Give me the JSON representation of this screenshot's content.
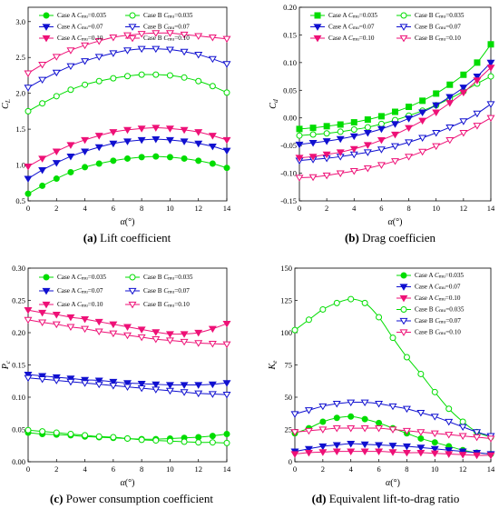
{
  "colors": {
    "green": "#00dd00",
    "blue": "#1010d0",
    "magenta": "#ee1177"
  },
  "figure": {
    "captions": [
      {
        "letter": "(a)",
        "text": "Lift coefficient"
      },
      {
        "letter": "(b)",
        "text": "Drag coefficien"
      },
      {
        "letter": "(c)",
        "text": "Power consumption coefficient"
      },
      {
        "letter": "(d)",
        "text": "Equivalent lift-to-drag ratio"
      }
    ]
  },
  "legend_labels": [
    {
      "caseLabel": "Case A",
      "var": "C",
      "sub": "mu",
      "value": "=0.035"
    },
    {
      "caseLabel": "Case B",
      "var": "C",
      "sub": "mu",
      "value": "=0.035"
    },
    {
      "caseLabel": "Case A",
      "var": "C",
      "sub": "mu",
      "value": "=0.07"
    },
    {
      "caseLabel": "Case B",
      "var": "C",
      "sub": "mu",
      "value": "=0.07"
    },
    {
      "caseLabel": "Case A",
      "var": "C",
      "sub": "mu",
      "value": "=0.10"
    },
    {
      "caseLabel": "Case B",
      "var": "C",
      "sub": "mu",
      "value": "=0.10"
    }
  ],
  "chart_data": [
    {
      "type": "line",
      "xlabel": "α(°)",
      "ylabel": "CL",
      "xlim": [
        0,
        14
      ],
      "ylim": [
        0.5,
        3.2
      ],
      "xticks": [
        0,
        2,
        4,
        6,
        8,
        10,
        12,
        14
      ],
      "yticks": [
        0.5,
        1.0,
        1.5,
        2.0,
        2.5,
        3.0
      ],
      "ytick_labels": [
        "0.5",
        "1.0",
        "1.5",
        "2.0",
        "2.5",
        "3.0"
      ],
      "legend": "top",
      "legend_columns": 2,
      "x": [
        0,
        1,
        2,
        3,
        4,
        5,
        6,
        7,
        8,
        9,
        10,
        11,
        12,
        13,
        14
      ],
      "series": [
        {
          "name": "Case A Cmu=0.035",
          "color": "green",
          "marker": "circle",
          "filled": true,
          "values": [
            0.6,
            0.71,
            0.81,
            0.9,
            0.97,
            1.02,
            1.06,
            1.09,
            1.11,
            1.12,
            1.11,
            1.09,
            1.06,
            1.02,
            0.96
          ]
        },
        {
          "name": "Case B Cmu=0.035",
          "color": "green",
          "marker": "circle",
          "filled": false,
          "values": [
            1.75,
            1.86,
            1.96,
            2.05,
            2.12,
            2.17,
            2.21,
            2.24,
            2.26,
            2.26,
            2.25,
            2.22,
            2.17,
            2.1,
            2.01
          ]
        },
        {
          "name": "Case A Cmu=0.07",
          "color": "blue",
          "marker": "triangle-down",
          "filled": true,
          "values": [
            0.81,
            0.93,
            1.03,
            1.12,
            1.19,
            1.25,
            1.3,
            1.33,
            1.35,
            1.36,
            1.35,
            1.33,
            1.3,
            1.26,
            1.2
          ]
        },
        {
          "name": "Case B Cmu=0.07",
          "color": "blue",
          "marker": "triangle-down",
          "filled": false,
          "values": [
            2.08,
            2.19,
            2.29,
            2.38,
            2.45,
            2.51,
            2.56,
            2.6,
            2.62,
            2.62,
            2.61,
            2.58,
            2.54,
            2.48,
            2.41
          ]
        },
        {
          "name": "Case A Cmu=0.10",
          "color": "magenta",
          "marker": "triangle-down",
          "filled": true,
          "values": [
            0.98,
            1.09,
            1.19,
            1.28,
            1.35,
            1.41,
            1.46,
            1.49,
            1.51,
            1.52,
            1.51,
            1.49,
            1.46,
            1.41,
            1.35
          ]
        },
        {
          "name": "Case B Cmu=0.10",
          "color": "magenta",
          "marker": "triangle-down",
          "filled": false,
          "values": [
            2.28,
            2.4,
            2.51,
            2.6,
            2.67,
            2.73,
            2.78,
            2.81,
            2.83,
            2.84,
            2.84,
            2.82,
            2.8,
            2.78,
            2.76
          ]
        }
      ]
    },
    {
      "type": "line",
      "xlabel": "α(°)",
      "ylabel": "Cd",
      "xlim": [
        0,
        14
      ],
      "ylim": [
        -0.15,
        0.2
      ],
      "xticks": [
        0,
        2,
        4,
        6,
        8,
        10,
        12,
        14
      ],
      "yticks": [
        -0.15,
        -0.1,
        -0.05,
        0.0,
        0.05,
        0.1,
        0.15,
        0.2
      ],
      "ytick_labels": [
        "-0.15",
        "-0.10",
        "-0.05",
        "0.00",
        "0.05",
        "0.10",
        "0.15",
        "0.20"
      ],
      "legend": "top",
      "legend_columns": 2,
      "x": [
        0,
        1,
        2,
        3,
        4,
        5,
        6,
        7,
        8,
        9,
        10,
        11,
        12,
        13,
        14
      ],
      "series": [
        {
          "name": "Case A Cmu=0.035",
          "color": "green",
          "marker": "square",
          "filled": true,
          "values": [
            -0.02,
            -0.018,
            -0.015,
            -0.012,
            -0.008,
            -0.003,
            0.003,
            0.011,
            0.02,
            0.031,
            0.044,
            0.06,
            0.078,
            0.1,
            0.133
          ]
        },
        {
          "name": "Case B Cmu=0.035",
          "color": "green",
          "marker": "circle",
          "filled": false,
          "values": [
            -0.032,
            -0.03,
            -0.028,
            -0.025,
            -0.021,
            -0.017,
            -0.011,
            -0.004,
            0.004,
            0.013,
            0.023,
            0.035,
            0.048,
            0.062,
            0.075
          ]
        },
        {
          "name": "Case A Cmu=0.07",
          "color": "blue",
          "marker": "triangle-down",
          "filled": true,
          "values": [
            -0.048,
            -0.045,
            -0.042,
            -0.038,
            -0.033,
            -0.027,
            -0.02,
            -0.011,
            -0.001,
            0.01,
            0.023,
            0.038,
            0.055,
            0.075,
            0.1
          ]
        },
        {
          "name": "Case B Cmu=0.07",
          "color": "blue",
          "marker": "triangle-down",
          "filled": false,
          "values": [
            -0.077,
            -0.075,
            -0.073,
            -0.07,
            -0.066,
            -0.062,
            -0.057,
            -0.051,
            -0.044,
            -0.036,
            -0.027,
            -0.017,
            -0.006,
            0.008,
            0.025
          ]
        },
        {
          "name": "Case A Cmu=0.10",
          "color": "magenta",
          "marker": "triangle-down",
          "filled": true,
          "values": [
            -0.072,
            -0.07,
            -0.066,
            -0.062,
            -0.056,
            -0.049,
            -0.04,
            -0.03,
            -0.018,
            -0.005,
            0.01,
            0.027,
            0.046,
            0.068,
            0.091
          ]
        },
        {
          "name": "Case B Cmu=0.10",
          "color": "magenta",
          "marker": "triangle-down",
          "filled": false,
          "values": [
            -0.108,
            -0.107,
            -0.104,
            -0.1,
            -0.096,
            -0.091,
            -0.085,
            -0.078,
            -0.07,
            -0.061,
            -0.051,
            -0.04,
            -0.027,
            -0.014,
            0.0
          ]
        }
      ]
    },
    {
      "type": "line",
      "xlabel": "α(°)",
      "ylabel": "Pc",
      "xlim": [
        0,
        14
      ],
      "ylim": [
        0.0,
        0.3
      ],
      "xticks": [
        0,
        2,
        4,
        6,
        8,
        10,
        12,
        14
      ],
      "yticks": [
        0.0,
        0.05,
        0.1,
        0.15,
        0.2,
        0.25,
        0.3
      ],
      "ytick_labels": [
        "0.00",
        "0.05",
        "0.10",
        "0.15",
        "0.20",
        "0.25",
        "0.30"
      ],
      "legend": "top",
      "legend_columns": 2,
      "x": [
        0,
        1,
        2,
        3,
        4,
        5,
        6,
        7,
        8,
        9,
        10,
        11,
        12,
        13,
        14
      ],
      "series": [
        {
          "name": "Case A Cmu=0.035",
          "color": "green",
          "marker": "circle",
          "filled": true,
          "values": [
            0.045,
            0.043,
            0.042,
            0.041,
            0.039,
            0.038,
            0.037,
            0.036,
            0.035,
            0.035,
            0.036,
            0.037,
            0.038,
            0.04,
            0.043
          ]
        },
        {
          "name": "Case B Cmu=0.035",
          "color": "green",
          "marker": "circle",
          "filled": false,
          "values": [
            0.049,
            0.047,
            0.045,
            0.043,
            0.041,
            0.039,
            0.038,
            0.036,
            0.034,
            0.033,
            0.032,
            0.031,
            0.03,
            0.03,
            0.029
          ]
        },
        {
          "name": "Case A Cmu=0.07",
          "color": "blue",
          "marker": "triangle-down",
          "filled": true,
          "values": [
            0.135,
            0.133,
            0.131,
            0.129,
            0.127,
            0.126,
            0.124,
            0.122,
            0.121,
            0.12,
            0.119,
            0.119,
            0.119,
            0.12,
            0.122
          ]
        },
        {
          "name": "Case B Cmu=0.07",
          "color": "blue",
          "marker": "triangle-down",
          "filled": false,
          "values": [
            0.13,
            0.128,
            0.126,
            0.124,
            0.122,
            0.12,
            0.118,
            0.116,
            0.114,
            0.112,
            0.11,
            0.108,
            0.106,
            0.105,
            0.104
          ]
        },
        {
          "name": "Case A Cmu=0.10",
          "color": "magenta",
          "marker": "triangle-down",
          "filled": true,
          "values": [
            0.235,
            0.231,
            0.228,
            0.224,
            0.221,
            0.217,
            0.213,
            0.209,
            0.205,
            0.201,
            0.198,
            0.198,
            0.2,
            0.206,
            0.214
          ]
        },
        {
          "name": "Case B Cmu=0.10",
          "color": "magenta",
          "marker": "triangle-down",
          "filled": false,
          "values": [
            0.22,
            0.216,
            0.213,
            0.209,
            0.206,
            0.202,
            0.199,
            0.196,
            0.193,
            0.19,
            0.188,
            0.186,
            0.184,
            0.183,
            0.182
          ]
        }
      ]
    },
    {
      "type": "line",
      "xlabel": "α(°)",
      "ylabel": "Ke",
      "xlim": [
        0,
        14
      ],
      "ylim": [
        0,
        150
      ],
      "xticks": [
        0,
        2,
        4,
        6,
        8,
        10,
        12,
        14
      ],
      "yticks": [
        0,
        25,
        50,
        75,
        100,
        125,
        150
      ],
      "ytick_labels": [
        "0",
        "25",
        "50",
        "75",
        "100",
        "125",
        "150"
      ],
      "legend": "top-right",
      "legend_columns": 1,
      "x": [
        0,
        1,
        2,
        3,
        4,
        5,
        6,
        7,
        8,
        9,
        10,
        11,
        12,
        13,
        14
      ],
      "series": [
        {
          "name": "Case A Cmu=0.035",
          "color": "green",
          "marker": "circle",
          "filled": true,
          "values": [
            22,
            26,
            31,
            34,
            35,
            33,
            30,
            26,
            22,
            18,
            15,
            12,
            9,
            7,
            6
          ]
        },
        {
          "name": "Case A Cmu=0.07",
          "color": "blue",
          "marker": "triangle-down",
          "filled": true,
          "values": [
            8,
            10,
            12,
            13,
            14,
            13.5,
            13,
            12.5,
            12,
            11,
            10,
            9,
            8,
            7,
            6
          ]
        },
        {
          "name": "Case A Cmu=0.10",
          "color": "magenta",
          "marker": "triangle-down",
          "filled": true,
          "values": [
            6,
            7,
            7.5,
            8,
            8,
            8,
            8,
            7.5,
            7,
            7,
            6.5,
            6,
            5.5,
            5,
            5
          ]
        },
        {
          "name": "Case B Cmu=0.035",
          "color": "green",
          "marker": "circle",
          "filled": false,
          "values": [
            102,
            110,
            118,
            123,
            126,
            123,
            112,
            96,
            81,
            68,
            54,
            41,
            31,
            23,
            19
          ]
        },
        {
          "name": "Case B Cmu=0.07",
          "color": "blue",
          "marker": "triangle-down",
          "filled": false,
          "values": [
            37,
            40,
            43,
            45,
            46,
            46,
            45,
            43,
            41,
            38,
            35,
            31,
            27,
            23,
            20
          ]
        },
        {
          "name": "Case B Cmu=0.10",
          "color": "magenta",
          "marker": "triangle-down",
          "filled": false,
          "values": [
            23,
            24,
            25,
            26,
            26,
            26,
            26,
            25,
            24,
            23,
            22,
            21,
            20,
            19,
            18
          ]
        }
      ]
    }
  ]
}
